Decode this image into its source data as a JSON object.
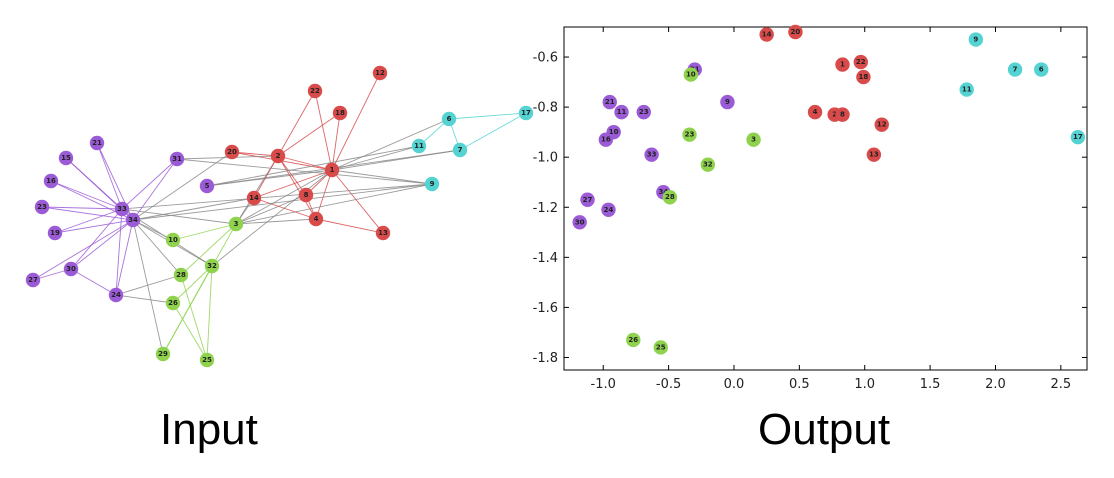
{
  "captions": {
    "input": "Input",
    "output": "Output"
  },
  "colors": {
    "purple": "#9b5bd6",
    "red": "#d94a4a",
    "green": "#8fd24e",
    "cyan": "#55d3d3"
  },
  "graph": {
    "nodes": [
      {
        "id": "1",
        "c": "red"
      },
      {
        "id": "2",
        "c": "red"
      },
      {
        "id": "3",
        "c": "green"
      },
      {
        "id": "4",
        "c": "red"
      },
      {
        "id": "5",
        "c": "purple"
      },
      {
        "id": "6",
        "c": "cyan"
      },
      {
        "id": "7",
        "c": "cyan"
      },
      {
        "id": "8",
        "c": "red"
      },
      {
        "id": "9",
        "c": "cyan"
      },
      {
        "id": "10",
        "c": "green"
      },
      {
        "id": "11",
        "c": "cyan"
      },
      {
        "id": "12",
        "c": "red"
      },
      {
        "id": "13",
        "c": "red"
      },
      {
        "id": "14",
        "c": "red"
      },
      {
        "id": "15",
        "c": "purple"
      },
      {
        "id": "16",
        "c": "purple"
      },
      {
        "id": "17",
        "c": "cyan"
      },
      {
        "id": "18",
        "c": "red"
      },
      {
        "id": "19",
        "c": "purple"
      },
      {
        "id": "20",
        "c": "red"
      },
      {
        "id": "21",
        "c": "purple"
      },
      {
        "id": "22",
        "c": "red"
      },
      {
        "id": "23",
        "c": "purple"
      },
      {
        "id": "24",
        "c": "purple"
      },
      {
        "id": "25",
        "c": "green"
      },
      {
        "id": "26",
        "c": "green"
      },
      {
        "id": "27",
        "c": "purple"
      },
      {
        "id": "28",
        "c": "green"
      },
      {
        "id": "29",
        "c": "green"
      },
      {
        "id": "30",
        "c": "purple"
      },
      {
        "id": "31",
        "c": "purple"
      },
      {
        "id": "32",
        "c": "green"
      },
      {
        "id": "33",
        "c": "purple"
      },
      {
        "id": "34",
        "c": "purple"
      }
    ],
    "edges": [
      [
        "1",
        "2"
      ],
      [
        "1",
        "3"
      ],
      [
        "1",
        "4"
      ],
      [
        "1",
        "5"
      ],
      [
        "1",
        "6"
      ],
      [
        "1",
        "7"
      ],
      [
        "1",
        "8"
      ],
      [
        "1",
        "9"
      ],
      [
        "1",
        "11"
      ],
      [
        "1",
        "12"
      ],
      [
        "1",
        "13"
      ],
      [
        "1",
        "14"
      ],
      [
        "1",
        "18"
      ],
      [
        "1",
        "20"
      ],
      [
        "1",
        "22"
      ],
      [
        "1",
        "32"
      ],
      [
        "2",
        "3"
      ],
      [
        "2",
        "4"
      ],
      [
        "2",
        "8"
      ],
      [
        "2",
        "14"
      ],
      [
        "2",
        "18"
      ],
      [
        "2",
        "20"
      ],
      [
        "2",
        "22"
      ],
      [
        "2",
        "31"
      ],
      [
        "3",
        "4"
      ],
      [
        "3",
        "8"
      ],
      [
        "3",
        "9"
      ],
      [
        "3",
        "10"
      ],
      [
        "3",
        "14"
      ],
      [
        "3",
        "28"
      ],
      [
        "3",
        "29"
      ],
      [
        "3",
        "33"
      ],
      [
        "4",
        "8"
      ],
      [
        "4",
        "13"
      ],
      [
        "4",
        "14"
      ],
      [
        "5",
        "7"
      ],
      [
        "5",
        "11"
      ],
      [
        "6",
        "7"
      ],
      [
        "6",
        "11"
      ],
      [
        "6",
        "17"
      ],
      [
        "7",
        "17"
      ],
      [
        "9",
        "31"
      ],
      [
        "9",
        "33"
      ],
      [
        "9",
        "34"
      ],
      [
        "10",
        "34"
      ],
      [
        "14",
        "34"
      ],
      [
        "15",
        "33"
      ],
      [
        "15",
        "34"
      ],
      [
        "16",
        "33"
      ],
      [
        "16",
        "34"
      ],
      [
        "19",
        "33"
      ],
      [
        "19",
        "34"
      ],
      [
        "20",
        "34"
      ],
      [
        "21",
        "33"
      ],
      [
        "21",
        "34"
      ],
      [
        "23",
        "33"
      ],
      [
        "23",
        "34"
      ],
      [
        "24",
        "26"
      ],
      [
        "24",
        "28"
      ],
      [
        "24",
        "30"
      ],
      [
        "24",
        "33"
      ],
      [
        "24",
        "34"
      ],
      [
        "25",
        "26"
      ],
      [
        "25",
        "28"
      ],
      [
        "25",
        "32"
      ],
      [
        "26",
        "32"
      ],
      [
        "27",
        "30"
      ],
      [
        "27",
        "34"
      ],
      [
        "28",
        "34"
      ],
      [
        "29",
        "32"
      ],
      [
        "29",
        "34"
      ],
      [
        "30",
        "33"
      ],
      [
        "30",
        "34"
      ],
      [
        "31",
        "33"
      ],
      [
        "31",
        "34"
      ],
      [
        "32",
        "33"
      ],
      [
        "32",
        "34"
      ],
      [
        "33",
        "34"
      ]
    ]
  },
  "chart_data": {
    "type": "scatter",
    "title": "",
    "xlabel": "",
    "ylabel": "",
    "xlim": [
      -1.3,
      2.7
    ],
    "ylim": [
      -1.85,
      -0.48
    ],
    "xticks": [
      "-1.0",
      "-0.5",
      "0.0",
      "0.5",
      "1.0",
      "1.5",
      "2.0",
      "2.5"
    ],
    "xtick_values": [
      -1.0,
      -0.5,
      0.0,
      0.5,
      1.0,
      1.5,
      2.0,
      2.5
    ],
    "yticks": [
      "-0.6",
      "-0.8",
      "-1.0",
      "-1.2",
      "-1.4",
      "-1.6",
      "-1.8"
    ],
    "ytick_values": [
      -0.6,
      -0.8,
      -1.0,
      -1.2,
      -1.4,
      -1.6,
      -1.8
    ],
    "grid": false,
    "points": [
      {
        "label": "14",
        "x": 0.25,
        "y": -0.51,
        "c": "red"
      },
      {
        "label": "20",
        "x": 0.47,
        "y": -0.5,
        "c": "red"
      },
      {
        "label": "9",
        "x": 1.85,
        "y": -0.53,
        "c": "cyan"
      },
      {
        "label": "1",
        "x": 0.83,
        "y": -0.63,
        "c": "red"
      },
      {
        "label": "22",
        "x": 0.97,
        "y": -0.62,
        "c": "red"
      },
      {
        "label": "18",
        "x": 0.99,
        "y": -0.68,
        "c": "red"
      },
      {
        "label": "7",
        "x": 2.15,
        "y": -0.65,
        "c": "cyan"
      },
      {
        "label": "6",
        "x": 2.35,
        "y": -0.65,
        "c": "cyan"
      },
      {
        "label": "31",
        "x": -0.3,
        "y": -0.65,
        "c": "purple"
      },
      {
        "label": "10",
        "x": -0.33,
        "y": -0.67,
        "c": "green"
      },
      {
        "label": "11",
        "x": 1.78,
        "y": -0.73,
        "c": "cyan"
      },
      {
        "label": "9",
        "x": -0.05,
        "y": -0.78,
        "c": "purple"
      },
      {
        "label": "21",
        "x": -0.95,
        "y": -0.78,
        "c": "purple"
      },
      {
        "label": "11",
        "x": -0.86,
        "y": -0.82,
        "c": "purple"
      },
      {
        "label": "23",
        "x": -0.69,
        "y": -0.82,
        "c": "purple"
      },
      {
        "label": "4",
        "x": 0.62,
        "y": -0.82,
        "c": "red"
      },
      {
        "label": "2",
        "x": 0.77,
        "y": -0.83,
        "c": "red"
      },
      {
        "label": "8",
        "x": 0.83,
        "y": -0.83,
        "c": "red"
      },
      {
        "label": "12",
        "x": 1.13,
        "y": -0.87,
        "c": "red"
      },
      {
        "label": "10",
        "x": -0.92,
        "y": -0.9,
        "c": "purple"
      },
      {
        "label": "16",
        "x": -0.98,
        "y": -0.93,
        "c": "purple"
      },
      {
        "label": "23",
        "x": -0.34,
        "y": -0.91,
        "c": "green"
      },
      {
        "label": "3",
        "x": 0.15,
        "y": -0.93,
        "c": "green"
      },
      {
        "label": "17",
        "x": 2.63,
        "y": -0.92,
        "c": "cyan"
      },
      {
        "label": "33",
        "x": -0.63,
        "y": -0.99,
        "c": "purple"
      },
      {
        "label": "13",
        "x": 1.07,
        "y": -0.99,
        "c": "red"
      },
      {
        "label": "32",
        "x": -0.2,
        "y": -1.03,
        "c": "green"
      },
      {
        "label": "34",
        "x": -0.54,
        "y": -1.14,
        "c": "purple"
      },
      {
        "label": "28",
        "x": -0.49,
        "y": -1.16,
        "c": "green"
      },
      {
        "label": "27",
        "x": -1.12,
        "y": -1.17,
        "c": "purple"
      },
      {
        "label": "24",
        "x": -0.96,
        "y": -1.21,
        "c": "purple"
      },
      {
        "label": "30",
        "x": -1.18,
        "y": -1.26,
        "c": "purple"
      },
      {
        "label": "26",
        "x": -0.77,
        "y": -1.73,
        "c": "green"
      },
      {
        "label": "25",
        "x": -0.56,
        "y": -1.76,
        "c": "green"
      }
    ]
  }
}
